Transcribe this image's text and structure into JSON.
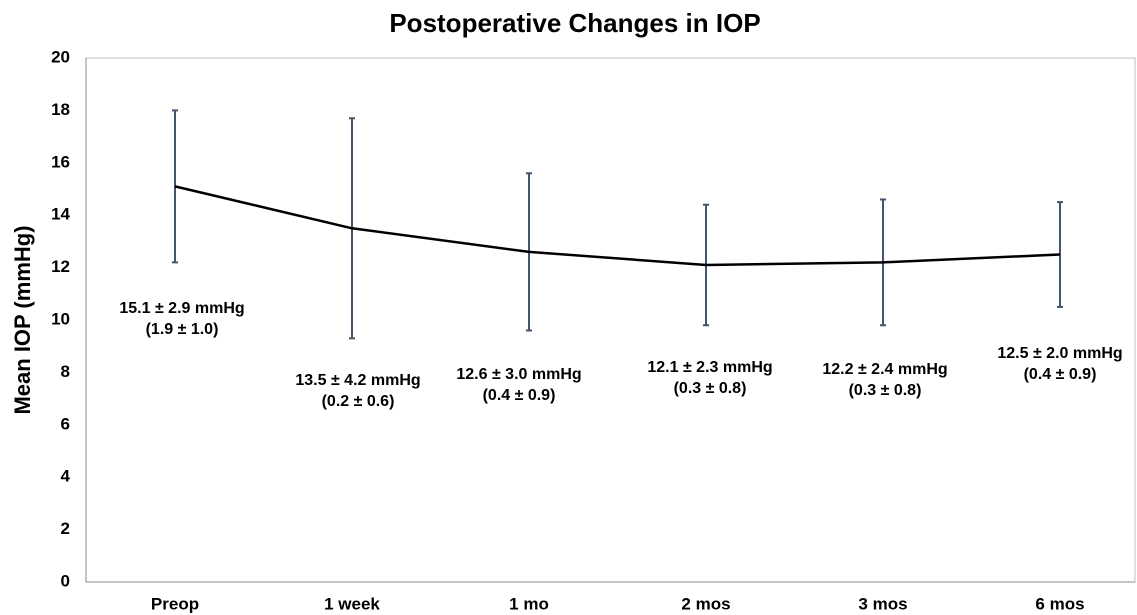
{
  "chart_data": {
    "type": "line",
    "title": "Postoperative Changes in IOP",
    "y_label": "Mean IOP (mmHg)",
    "categories": [
      "Preop",
      "1 week",
      "1 mo",
      "2 mos",
      "3 mos",
      "6 mos"
    ],
    "series": [
      {
        "color": "#000000",
        "error_color": "#44546a",
        "values": [
          15.1,
          13.5,
          12.6,
          12.1,
          12.2,
          12.5
        ],
        "errors": [
          2.9,
          4.2,
          3.0,
          2.3,
          2.4,
          2.0
        ],
        "value_labels": [
          "15.1 ± 2.9 mmHg",
          "13.5 ± 4.2 mmHg",
          "12.6 ± 3.0 mmHg",
          "12.1 ± 2.3 mmHg",
          "12.2 ± 2.4 mmHg",
          "12.5 ± 2.0 mmHg"
        ],
        "secondary_labels": [
          "(1.9 ± 1.0)",
          "(0.2 ± 0.6)",
          "(0.4 ± 0.9)",
          "(0.3 ± 0.8)",
          "(0.3 ± 0.8)",
          "(0.4 ± 0.9)"
        ]
      }
    ],
    "ylim": [
      0,
      20
    ],
    "yticks": [
      0,
      2,
      4,
      6,
      8,
      10,
      12,
      14,
      16,
      18,
      20
    ],
    "grid": false
  }
}
